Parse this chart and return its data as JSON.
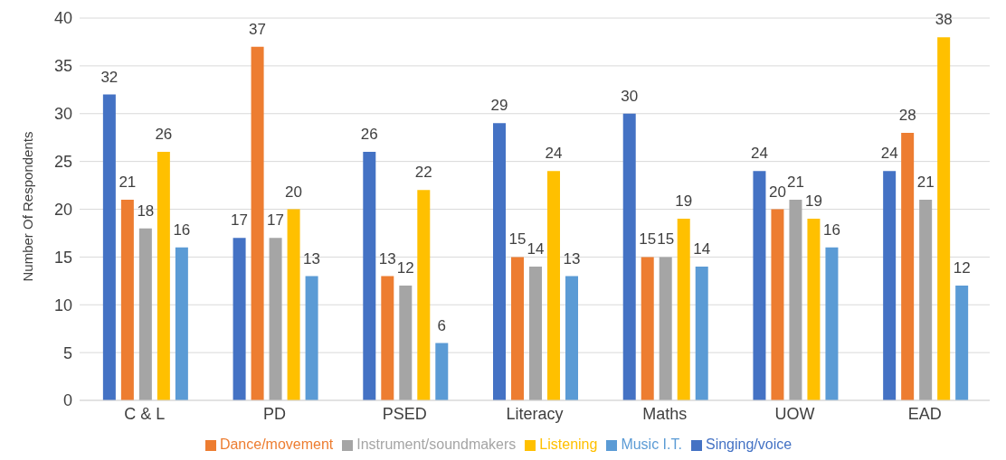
{
  "chart_data": {
    "type": "bar",
    "ylabel": "Number Of Respondents",
    "categories": [
      "C & L",
      "PD",
      "PSED",
      "Literacy",
      "Maths",
      "UOW",
      "EAD"
    ],
    "series": [
      {
        "name": "Singing/voice",
        "color": "#4472c4",
        "values": [
          32,
          17,
          26,
          29,
          30,
          24,
          24
        ]
      },
      {
        "name": "Dance/movement",
        "color": "#ed7d31",
        "values": [
          21,
          37,
          13,
          15,
          15,
          20,
          28
        ]
      },
      {
        "name": "Instrument/soundmakers",
        "color": "#a5a5a5",
        "values": [
          18,
          17,
          12,
          14,
          15,
          21,
          21
        ]
      },
      {
        "name": "Listening",
        "color": "#ffc000",
        "values": [
          26,
          20,
          22,
          24,
          19,
          19,
          38
        ]
      },
      {
        "name": "Music I.T.",
        "color": "#5b9bd5",
        "values": [
          16,
          13,
          6,
          13,
          14,
          16,
          12
        ]
      }
    ],
    "ylim": [
      0,
      40
    ],
    "yticks": [
      0,
      5,
      10,
      15,
      20,
      25,
      30,
      35,
      40
    ],
    "grid": "y",
    "legend": "bottom",
    "data_labels": true
  }
}
